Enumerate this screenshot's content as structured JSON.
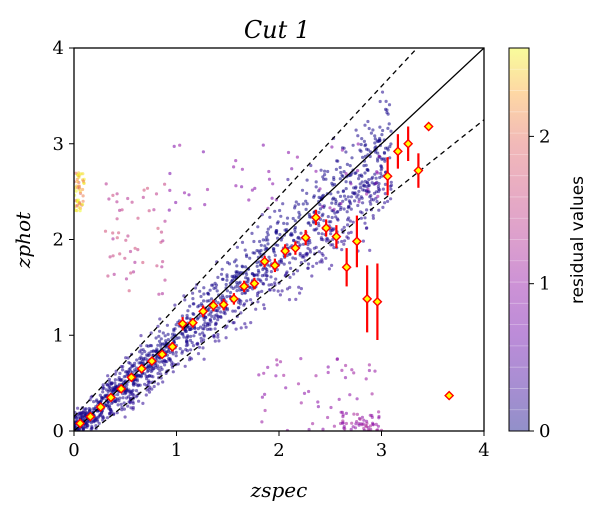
{
  "chart_data": {
    "type": "scatter",
    "title": "Cut 1",
    "xlabel": "zspec",
    "ylabel": "zphot",
    "xlim": [
      0,
      4
    ],
    "ylim": [
      0,
      4
    ],
    "xticks": [
      "0",
      "1",
      "2",
      "3",
      "4"
    ],
    "yticks": [
      "0",
      "1",
      "2",
      "3",
      "4"
    ],
    "grid": false,
    "reference_lines": [
      {
        "name": "identity",
        "style": "solid",
        "color": "#000000",
        "slope": 1.0
      },
      {
        "name": "upper bound",
        "style": "dashed",
        "color": "#000000",
        "slope": 1.15,
        "intercept": 0.15
      },
      {
        "name": "lower bound",
        "style": "dashed",
        "color": "#000000",
        "slope": 0.85,
        "intercept": -0.15
      }
    ],
    "binned_median": {
      "marker": "diamond",
      "color": "#ff0000",
      "fill": "#ffff00",
      "points": [
        {
          "x": 0.06,
          "y": 0.08,
          "err": 0.03
        },
        {
          "x": 0.16,
          "y": 0.15,
          "err": 0.03
        },
        {
          "x": 0.26,
          "y": 0.25,
          "err": 0.03
        },
        {
          "x": 0.36,
          "y": 0.35,
          "err": 0.03
        },
        {
          "x": 0.46,
          "y": 0.44,
          "err": 0.03
        },
        {
          "x": 0.56,
          "y": 0.56,
          "err": 0.04
        },
        {
          "x": 0.66,
          "y": 0.65,
          "err": 0.04
        },
        {
          "x": 0.76,
          "y": 0.73,
          "err": 0.04
        },
        {
          "x": 0.86,
          "y": 0.8,
          "err": 0.04
        },
        {
          "x": 0.96,
          "y": 0.88,
          "err": 0.05
        },
        {
          "x": 1.06,
          "y": 1.12,
          "err": 0.07
        },
        {
          "x": 1.16,
          "y": 1.13,
          "err": 0.05
        },
        {
          "x": 1.26,
          "y": 1.25,
          "err": 0.06
        },
        {
          "x": 1.36,
          "y": 1.31,
          "err": 0.06
        },
        {
          "x": 1.46,
          "y": 1.32,
          "err": 0.06
        },
        {
          "x": 1.56,
          "y": 1.38,
          "err": 0.06
        },
        {
          "x": 1.66,
          "y": 1.51,
          "err": 0.06
        },
        {
          "x": 1.76,
          "y": 1.54,
          "err": 0.06
        },
        {
          "x": 1.86,
          "y": 1.77,
          "err": 0.06
        },
        {
          "x": 1.96,
          "y": 1.73,
          "err": 0.07
        },
        {
          "x": 2.06,
          "y": 1.88,
          "err": 0.07
        },
        {
          "x": 2.16,
          "y": 1.91,
          "err": 0.07
        },
        {
          "x": 2.26,
          "y": 2.02,
          "err": 0.08
        },
        {
          "x": 2.36,
          "y": 2.23,
          "err": 0.08
        },
        {
          "x": 2.46,
          "y": 2.12,
          "err": 0.09
        },
        {
          "x": 2.56,
          "y": 2.03,
          "err": 0.12
        },
        {
          "x": 2.66,
          "y": 1.71,
          "err": 0.2
        },
        {
          "x": 2.76,
          "y": 1.98,
          "err": 0.27
        },
        {
          "x": 2.86,
          "y": 1.38,
          "err": 0.35
        },
        {
          "x": 2.96,
          "y": 1.35,
          "err": 0.4
        },
        {
          "x": 3.06,
          "y": 2.66,
          "err": 0.2
        },
        {
          "x": 3.16,
          "y": 2.92,
          "err": 0.18
        },
        {
          "x": 3.26,
          "y": 3.0,
          "err": 0.18
        },
        {
          "x": 3.36,
          "y": 2.72,
          "err": 0.18
        },
        {
          "x": 3.46,
          "y": 3.18,
          "err": 0.0
        },
        {
          "x": 3.66,
          "y": 0.37,
          "err": 0.0
        }
      ]
    },
    "scatter": {
      "point_count": 1800,
      "main_trend": {
        "slope": 0.93,
        "scatter": 0.08,
        "xrange": [
          0,
          3.1
        ]
      },
      "outlier_regions": [
        {
          "xrange": [
            0,
            0.1
          ],
          "yrange": [
            2.3,
            2.7
          ],
          "residual": 2.4
        },
        {
          "xrange": [
            0.3,
            0.9
          ],
          "yrange": [
            1.4,
            2.6
          ],
          "residual": 1.5
        },
        {
          "xrange": [
            1.8,
            3.0
          ],
          "yrange": [
            0.0,
            0.8
          ],
          "residual": 1.0
        },
        {
          "xrange": [
            0.9,
            3.0
          ],
          "yrange": [
            2.3,
            3.0
          ],
          "residual": 0.9
        },
        {
          "xrange": [
            2.6,
            3.0
          ],
          "yrange": [
            0.0,
            0.2
          ],
          "residual": 1.1
        }
      ]
    },
    "colorbar": {
      "label": "residual values",
      "range": [
        0,
        2.6
      ],
      "ticks": [
        "0",
        "1",
        "2"
      ],
      "tick_values": [
        0,
        1,
        2
      ],
      "colormap": "plasma",
      "alpha": 0.45
    }
  }
}
